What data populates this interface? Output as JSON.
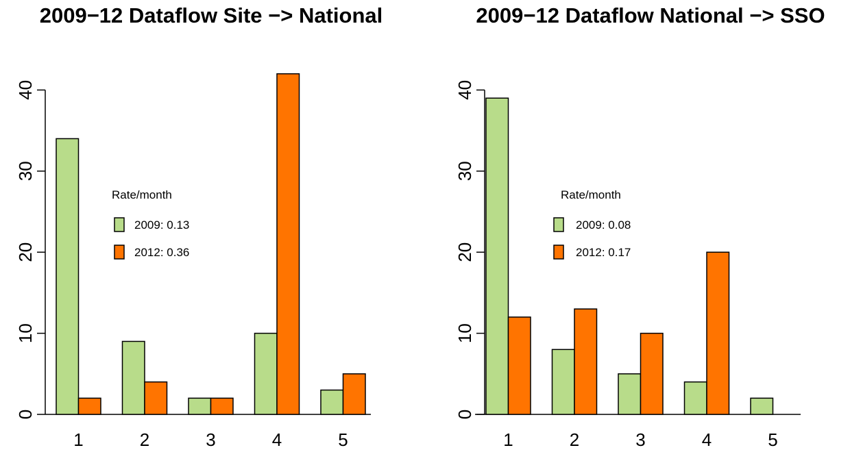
{
  "colors": {
    "series_2009": "#b8dc8a",
    "series_2012": "#ff7400"
  },
  "chart_data": [
    {
      "type": "bar",
      "title": "2009−12 Dataflow Site −> National",
      "categories": [
        "1",
        "2",
        "3",
        "4",
        "5"
      ],
      "ylim": [
        0,
        42
      ],
      "yticks": [
        "0",
        "10",
        "20",
        "30",
        "40"
      ],
      "grid": false,
      "legend_position": "center-left",
      "legend_title": "Rate/month",
      "series": [
        {
          "name": "2009: 0.13",
          "color": "#b8dc8a",
          "values": [
            34,
            9,
            2,
            10,
            3
          ]
        },
        {
          "name": "2012: 0.36",
          "color": "#ff7400",
          "values": [
            2,
            4,
            2,
            42,
            5
          ]
        }
      ]
    },
    {
      "type": "bar",
      "title": "2009−12 Dataflow National −> SSO",
      "categories": [
        "1",
        "2",
        "3",
        "4",
        "5"
      ],
      "ylim": [
        0,
        42
      ],
      "yticks": [
        "0",
        "10",
        "20",
        "30",
        "40"
      ],
      "grid": false,
      "legend_position": "center-left",
      "legend_title": "Rate/month",
      "series": [
        {
          "name": "2009: 0.08",
          "color": "#b8dc8a",
          "values": [
            39,
            8,
            5,
            4,
            2
          ]
        },
        {
          "name": "2012: 0.17",
          "color": "#ff7400",
          "values": [
            12,
            13,
            10,
            20,
            0
          ]
        }
      ]
    }
  ]
}
